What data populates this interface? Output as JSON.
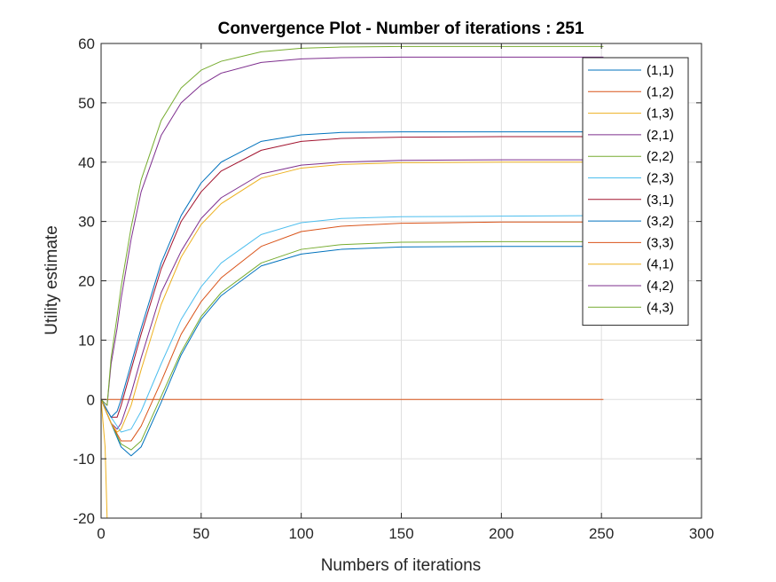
{
  "chart_data": {
    "type": "line",
    "title": "Convergence Plot - Number of iterations : 251",
    "xlabel": "Numbers of iterations",
    "ylabel": "Utility estimate",
    "xlim": [
      0,
      300
    ],
    "ylim": [
      -20,
      60
    ],
    "xticks": [
      0,
      50,
      100,
      150,
      200,
      250,
      300
    ],
    "yticks": [
      -20,
      -10,
      0,
      10,
      20,
      30,
      40,
      50,
      60
    ],
    "grid": true,
    "legend_position": "top-right",
    "series": [
      {
        "name": "(1,1)",
        "color": "#0072BD",
        "x": [
          0,
          5,
          10,
          15,
          20,
          30,
          40,
          50,
          60,
          80,
          100,
          120,
          150,
          200,
          251
        ],
        "y": [
          0,
          -4,
          -8,
          -9.5,
          -8,
          -0.5,
          7.5,
          13.5,
          17.5,
          22.5,
          24.5,
          25.3,
          25.7,
          25.8,
          25.8
        ]
      },
      {
        "name": "(1,2)",
        "color": "#D95319",
        "x": [
          0,
          251
        ],
        "y": [
          0,
          0
        ]
      },
      {
        "name": "(1,3)",
        "color": "#EDB120",
        "x": [
          0,
          2,
          3,
          251
        ],
        "y": [
          0,
          -8,
          -20,
          -20
        ]
      },
      {
        "name": "(2,1)",
        "color": "#7E2F8E",
        "x": [
          0,
          5,
          8,
          10,
          15,
          20,
          30,
          40,
          50,
          60,
          80,
          100,
          120,
          150,
          200,
          251
        ],
        "y": [
          0,
          -4,
          -5,
          -4,
          1,
          7,
          18,
          25,
          30.5,
          34,
          38,
          39.5,
          40,
          40.3,
          40.4,
          40.4
        ]
      },
      {
        "name": "(2,2)",
        "color": "#77AC30",
        "x": [
          0,
          5,
          10,
          15,
          20,
          30,
          40,
          50,
          60,
          80,
          100,
          120,
          150,
          200,
          251
        ],
        "y": [
          0,
          -4,
          -7.5,
          -8.5,
          -7,
          0.5,
          8,
          14,
          18,
          23,
          25.3,
          26.1,
          26.5,
          26.6,
          26.6
        ]
      },
      {
        "name": "(2,3)",
        "color": "#4DBEEE",
        "x": [
          0,
          5,
          10,
          15,
          20,
          30,
          40,
          50,
          60,
          80,
          100,
          120,
          150,
          200,
          251
        ],
        "y": [
          0,
          -3,
          -5.5,
          -5,
          -2,
          6,
          13.5,
          19,
          23,
          27.8,
          29.8,
          30.5,
          30.8,
          30.9,
          31
        ]
      },
      {
        "name": "(3,1)",
        "color": "#A2142F",
        "x": [
          0,
          5,
          8,
          10,
          15,
          20,
          30,
          40,
          50,
          60,
          80,
          100,
          120,
          150,
          200,
          251
        ],
        "y": [
          0,
          -3,
          -3,
          -1,
          5,
          11,
          22,
          30,
          35,
          38.5,
          42,
          43.5,
          44,
          44.2,
          44.3,
          44.3
        ]
      },
      {
        "name": "(3,2)",
        "color": "#0072BD",
        "x": [
          0,
          5,
          8,
          10,
          15,
          20,
          30,
          40,
          50,
          60,
          80,
          100,
          120,
          150,
          200,
          251
        ],
        "y": [
          0,
          -3,
          -2,
          0,
          6,
          12,
          23,
          31,
          36.5,
          40,
          43.5,
          44.6,
          45,
          45.1,
          45.1,
          45.1
        ]
      },
      {
        "name": "(3,3)",
        "color": "#D95319",
        "x": [
          0,
          5,
          10,
          15,
          20,
          30,
          40,
          50,
          60,
          80,
          100,
          120,
          150,
          200,
          251
        ],
        "y": [
          0,
          -4,
          -7,
          -7,
          -4.5,
          3,
          11,
          16.5,
          20.5,
          25.8,
          28.3,
          29.2,
          29.7,
          29.9,
          29.9
        ]
      },
      {
        "name": "(4,1)",
        "color": "#EDB120",
        "x": [
          0,
          5,
          8,
          10,
          15,
          20,
          30,
          40,
          50,
          60,
          80,
          100,
          120,
          150,
          200,
          251
        ],
        "y": [
          0,
          -4,
          -5.5,
          -5,
          -1,
          5,
          16,
          24,
          29.5,
          33,
          37.3,
          39,
          39.6,
          39.9,
          40,
          40
        ]
      },
      {
        "name": "(4,2)",
        "color": "#7E2F8E",
        "x": [
          0,
          3,
          5,
          8,
          10,
          15,
          20,
          30,
          40,
          50,
          60,
          80,
          100,
          120,
          150,
          200,
          251
        ],
        "y": [
          0,
          -1,
          6,
          12,
          17,
          27,
          35,
          44.5,
          50,
          53,
          55,
          56.8,
          57.4,
          57.6,
          57.7,
          57.7,
          57.7
        ]
      },
      {
        "name": "(4,3)",
        "color": "#77AC30",
        "x": [
          0,
          3,
          5,
          8,
          10,
          15,
          20,
          30,
          40,
          50,
          60,
          80,
          100,
          120,
          150,
          200,
          251
        ],
        "y": [
          0,
          -1,
          7,
          14,
          19,
          29,
          37,
          47,
          52.5,
          55.5,
          57,
          58.6,
          59.2,
          59.4,
          59.5,
          59.5,
          59.5
        ]
      }
    ]
  }
}
